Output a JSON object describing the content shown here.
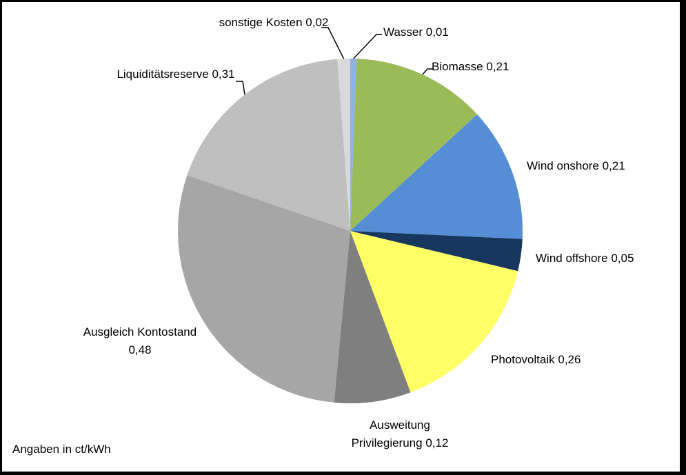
{
  "chart_data": {
    "type": "pie",
    "categories": [
      "Wasser",
      "Biomasse",
      "Wind onshore",
      "Wind offshore",
      "Photovoltaik",
      "Ausweitung Privilegierung",
      "Ausgleich Kontostand",
      "Liquiditätsreserve",
      "sonstige Kosten"
    ],
    "values": [
      0.01,
      0.21,
      0.21,
      0.05,
      0.26,
      0.12,
      0.48,
      0.31,
      0.02
    ],
    "value_labels": [
      "0,01",
      "0,21",
      "0,21",
      "0,05",
      "0,26",
      "0,12",
      "0,48",
      "0,31",
      "0,02"
    ],
    "colors": [
      "#8db4e2",
      "#9bbb59",
      "#558ed5",
      "#17375e",
      "#ffff66",
      "#7f7f7f",
      "#a6a6a6",
      "#bfbfbf",
      "#d9d9d9"
    ],
    "note": "Angaben in ct/kWh"
  }
}
